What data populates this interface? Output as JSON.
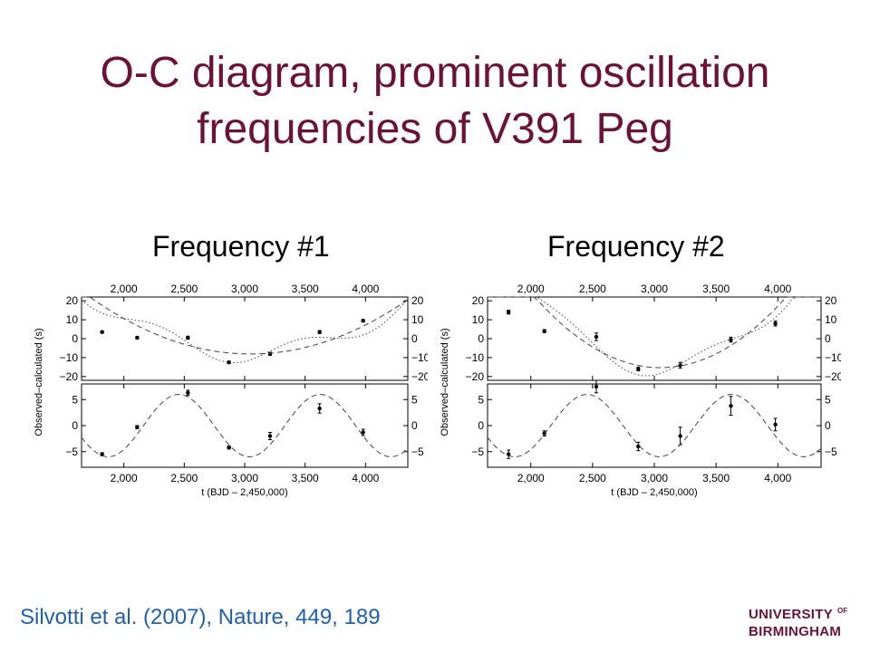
{
  "slide": {
    "title_line1": "O-C diagram, prominent oscillation",
    "title_line2": "frequencies of V391 Peg",
    "title_color": "#6b1236",
    "citation": "Silvotti et al. (2007), Nature, 449, 189",
    "citation_color": "#1f5faf",
    "logo_line1": "UNIVERSITY",
    "logo_of": "OF",
    "logo_line2": "BIRMINGHAM",
    "logo_color": "#6b1236"
  },
  "chart_data": [
    {
      "type": "scatter",
      "label": "Frequency #1",
      "xlabel": "t (BJD – 2,450,000)",
      "ylabel": "Observed–calculated (s)",
      "xlim": [
        1650,
        4350
      ],
      "xticks": [
        2000,
        2500,
        3000,
        3500,
        4000
      ],
      "xtick_labels": [
        "2,000",
        "2,500",
        "3,000",
        "3,500",
        "4,000"
      ],
      "top": {
        "ylim": [
          -22,
          22
        ],
        "yticks": [
          -20,
          -10,
          0,
          10,
          20
        ],
        "ytick_labels": [
          "−20",
          "−10",
          "0",
          "10",
          "20"
        ],
        "points": [
          {
            "x": 1820,
            "y": 3.5,
            "err": 0.6
          },
          {
            "x": 2110,
            "y": 0.5,
            "err": 0.6
          },
          {
            "x": 2530,
            "y": 0.5,
            "err": 0.8
          },
          {
            "x": 2870,
            "y": -12.5,
            "err": 0.6
          },
          {
            "x": 3210,
            "y": -8,
            "err": 0.8
          },
          {
            "x": 3620,
            "y": 3.5,
            "err": 0.8
          },
          {
            "x": 3980,
            "y": 9.5,
            "err": 0.6
          }
        ]
      },
      "bottom": {
        "ylim": [
          -8,
          8
        ],
        "yticks": [
          -5,
          0,
          5
        ],
        "ytick_labels": [
          "−5",
          "0",
          "5"
        ],
        "points": [
          {
            "x": 1820,
            "y": -5.5,
            "err": 0.3
          },
          {
            "x": 2110,
            "y": -0.3,
            "err": 0.3
          },
          {
            "x": 2530,
            "y": 6.3,
            "err": 0.5
          },
          {
            "x": 2870,
            "y": -4.2,
            "err": 0.3
          },
          {
            "x": 3210,
            "y": -2.0,
            "err": 0.7
          },
          {
            "x": 3620,
            "y": 3.3,
            "err": 0.9
          },
          {
            "x": 3980,
            "y": -1.3,
            "err": 0.6
          }
        ]
      }
    },
    {
      "type": "scatter",
      "label": "Frequency #2",
      "xlabel": "t (BJD – 2,450,000)",
      "ylabel": "Observed–calculated (s)",
      "xlim": [
        1650,
        4350
      ],
      "xticks": [
        2000,
        2500,
        3000,
        3500,
        4000
      ],
      "xtick_labels": [
        "2,000",
        "2,500",
        "3,000",
        "3,500",
        "4,000"
      ],
      "top": {
        "ylim": [
          -22,
          22
        ],
        "yticks": [
          -20,
          -10,
          0,
          10,
          20
        ],
        "ytick_labels": [
          "−20",
          "−10",
          "0",
          "10",
          "20"
        ],
        "points": [
          {
            "x": 1820,
            "y": 14,
            "err": 1.0
          },
          {
            "x": 2110,
            "y": 4,
            "err": 0.8
          },
          {
            "x": 2530,
            "y": 1,
            "err": 2.0
          },
          {
            "x": 2870,
            "y": -16,
            "err": 1.0
          },
          {
            "x": 3210,
            "y": -14,
            "err": 1.5
          },
          {
            "x": 3620,
            "y": -0.5,
            "err": 1.3
          },
          {
            "x": 3980,
            "y": 8,
            "err": 1.3
          }
        ]
      },
      "bottom": {
        "ylim": [
          -8,
          8
        ],
        "yticks": [
          -5,
          0,
          5
        ],
        "ytick_labels": [
          "−5",
          "0",
          "5"
        ],
        "points": [
          {
            "x": 1820,
            "y": -5.5,
            "err": 0.8
          },
          {
            "x": 2110,
            "y": -1.5,
            "err": 0.5
          },
          {
            "x": 2530,
            "y": 7.5,
            "err": 1.2
          },
          {
            "x": 2870,
            "y": -4.0,
            "err": 0.8
          },
          {
            "x": 3210,
            "y": -2.0,
            "err": 1.7
          },
          {
            "x": 3620,
            "y": 3.8,
            "err": 1.8
          },
          {
            "x": 3980,
            "y": 0.2,
            "err": 1.2
          }
        ]
      }
    }
  ]
}
